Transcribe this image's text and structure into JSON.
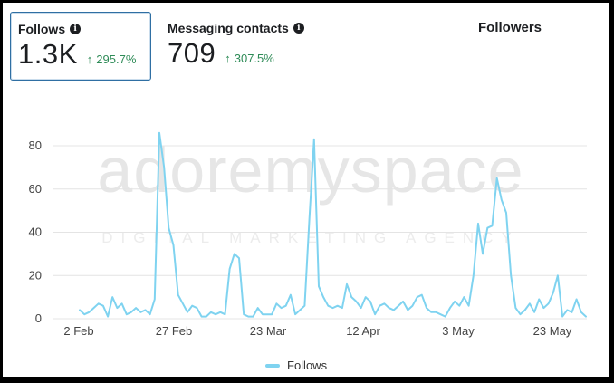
{
  "cards": [
    {
      "label": "Follows",
      "value": "1.3K",
      "change": "295.7%"
    },
    {
      "label": "Messaging contacts",
      "value": "709",
      "change": "307.5%"
    }
  ],
  "info_icon_glyph": "i",
  "arrow_glyph": "↑",
  "followers_tab": "Followers",
  "watermark": {
    "logo": "adoremyspace",
    "tagline": "DIGITAL MARKETING AGENCY"
  },
  "colors": {
    "line": "#7fd3f0",
    "positive": "#2e8b57",
    "accent_border": "#2f6fa3"
  },
  "chart_data": {
    "type": "line",
    "x_tick_labels": [
      "2 Feb",
      "27 Feb",
      "23 Mar",
      "12 Apr",
      "3 May",
      "23 May"
    ],
    "y_ticks": [
      0,
      20,
      40,
      60,
      80
    ],
    "ylim": [
      0,
      90
    ],
    "legend_position": "bottom",
    "grid": true,
    "series": [
      {
        "name": "Follows",
        "values": [
          4,
          2,
          3,
          5,
          7,
          6,
          1,
          10,
          5,
          7,
          2,
          3,
          5,
          3,
          4,
          2,
          9,
          86,
          70,
          42,
          34,
          11,
          7,
          3,
          6,
          5,
          1,
          1,
          3,
          2,
          3,
          2,
          23,
          30,
          28,
          2,
          1,
          1,
          5,
          2,
          2,
          2,
          7,
          5,
          6,
          11,
          2,
          4,
          6,
          46,
          83,
          15,
          10,
          6,
          5,
          6,
          5,
          16,
          10,
          8,
          5,
          10,
          8,
          2,
          6,
          7,
          5,
          4,
          6,
          8,
          4,
          6,
          10,
          11,
          5,
          3,
          3,
          2,
          1,
          5,
          8,
          6,
          10,
          6,
          20,
          44,
          30,
          42,
          43,
          65,
          55,
          49,
          20,
          5,
          2,
          4,
          7,
          3,
          9,
          5,
          7,
          12,
          20,
          1,
          4,
          3,
          9,
          3,
          1
        ]
      }
    ]
  },
  "legend": {
    "label": "Follows"
  }
}
